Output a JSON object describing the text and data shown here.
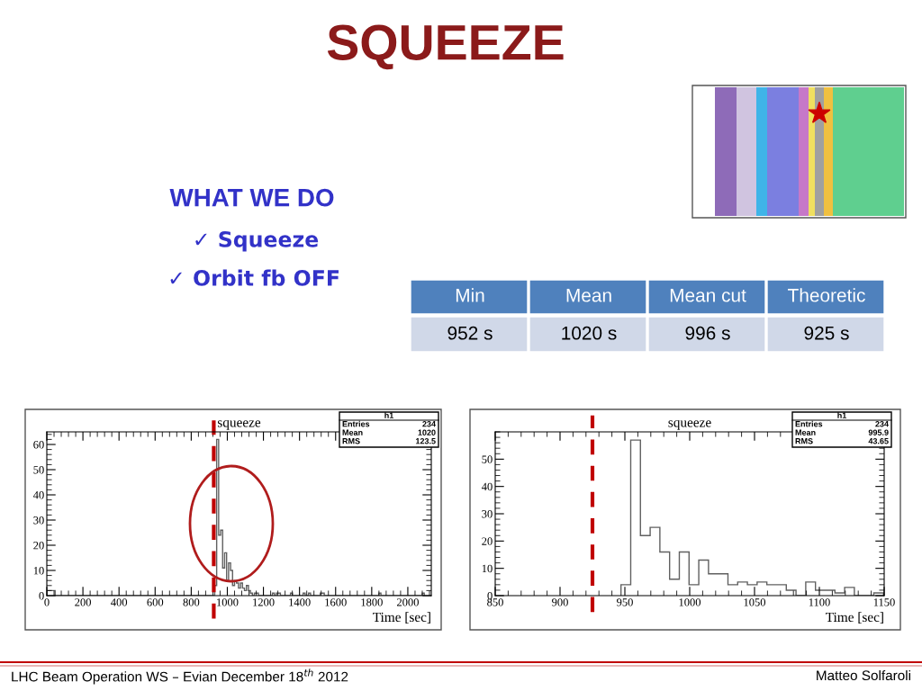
{
  "chart_data": [
    {
      "type": "other",
      "title": "SQUEEZE",
      "categories": [
        "Min",
        "Mean",
        "Mean cut",
        "Theoretic"
      ],
      "value_labels": [
        "952 s",
        "1020 s",
        "996 s",
        "925 s"
      ],
      "annotations": [
        "WHAT WE DO",
        "✓ Squeeze",
        "✓ Orbit fb OFF",
        "LHC Beam Operation WS – Evian December 18$^{th}$ 2012",
        "Matteo Solfaroli"
      ]
    },
    {
      "type": "histogram",
      "title": "squeeze",
      "xlabel": "Time [sec]",
      "color": "#606060",
      "bins": [
        0,
        46,
        930,
        941,
        952,
        963,
        974,
        985,
        996,
        1007,
        1018,
        1029,
        1040,
        1051,
        1062,
        1073,
        1084,
        1095,
        1106,
        1117,
        1128,
        1139,
        1150,
        1161,
        1172,
        1250,
        1261,
        1272,
        1283,
        1294,
        1350,
        1361,
        1420,
        1431,
        1450,
        1461,
        1515,
        1537,
        1840,
        1851,
        2080,
        2091
      ],
      "values": [
        2,
        0,
        4,
        62,
        24,
        26,
        11,
        17,
        6,
        13,
        10,
        4,
        6,
        5,
        3,
        5,
        3,
        2,
        4,
        2,
        1,
        0,
        1,
        1,
        0,
        1,
        0,
        1,
        1,
        0,
        1,
        0,
        1,
        0,
        1,
        0,
        1,
        0,
        1,
        0,
        1
      ],
      "xlim": [
        0,
        2130
      ],
      "xticks": [
        0,
        200,
        400,
        600,
        800,
        1000,
        1200,
        1400,
        1600,
        1800,
        2000
      ],
      "ylim": [
        0,
        65
      ],
      "yticks": [
        0,
        10,
        20,
        30,
        40,
        50,
        60
      ],
      "ref_lines": [
        {
          "axis": "x",
          "value": 925,
          "color": "#c00000",
          "line_style": "dashed"
        }
      ],
      "annotations": [
        "h1",
        "Entries",
        "234",
        "Mean",
        "1020",
        "RMS",
        "123.5"
      ],
      "grid": false
    },
    {
      "type": "histogram",
      "title": "squeeze",
      "xlabel": "Time [sec]",
      "color": "#606060",
      "bins": [
        947,
        954.5,
        962,
        969.5,
        977,
        984.5,
        992,
        999.5,
        1007,
        1014.5,
        1022,
        1029.5,
        1037,
        1044.5,
        1052,
        1059.5,
        1067,
        1074.5,
        1082,
        1089.5,
        1097,
        1104.5,
        1112,
        1119.5,
        1127,
        1134.5,
        1142,
        1149.5
      ],
      "values": [
        4,
        57,
        22,
        25,
        16,
        6,
        16,
        4,
        13,
        8,
        8,
        4,
        5,
        4,
        5,
        4,
        4,
        2,
        0,
        5,
        2,
        2,
        1,
        3,
        0,
        0,
        1
      ],
      "xlim": [
        850,
        1150
      ],
      "xticks": [
        850,
        900,
        950,
        1000,
        1050,
        1100,
        1150
      ],
      "ylim": [
        0,
        60
      ],
      "yticks": [
        0,
        10,
        20,
        30,
        40,
        50
      ],
      "ref_lines": [
        {
          "axis": "x",
          "value": 925,
          "color": "#c00000",
          "line_style": "dashed"
        }
      ],
      "annotations": [
        "h1",
        "Entries",
        "234",
        "Mean",
        "995.9",
        "RMS",
        "43.65"
      ],
      "grid": false
    }
  ]
}
